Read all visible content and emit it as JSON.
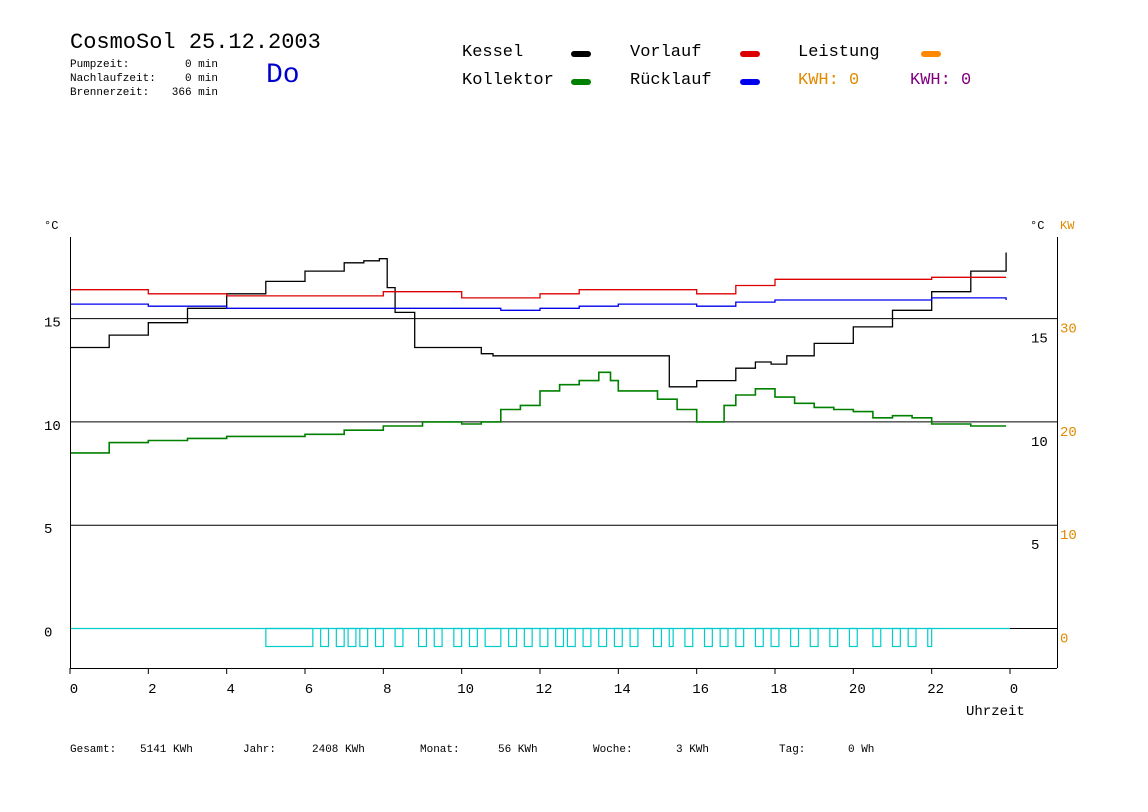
{
  "header": {
    "title": "CosmoSol 25.12.2003",
    "day": "Do",
    "stats": [
      {
        "label": "Pumpzeit:",
        "value": "0 min"
      },
      {
        "label": "Nachlaufzeit:",
        "value": "0 min"
      },
      {
        "label": "Brennerzeit:",
        "value": "366 min"
      }
    ]
  },
  "legend": {
    "kessel": {
      "label": "Kessel",
      "color": "#000000"
    },
    "vorlauf": {
      "label": "Vorlauf",
      "color": "#dd0000"
    },
    "leistung": {
      "label": "Leistung",
      "color": "#ff8800"
    },
    "kollektor": {
      "label": "Kollektor",
      "color": "#008000"
    },
    "ruecklauf": {
      "label": "Rücklauf",
      "color": "#0000ee"
    },
    "kwh1": {
      "label": "KWH: 0",
      "color": "#e08a00"
    },
    "kwh2": {
      "label": "KWH: 0",
      "color": "#800080"
    }
  },
  "chart_data": {
    "type": "line",
    "xlabel": "Uhrzeit",
    "xlim": [
      0,
      24
    ],
    "x_ticks": [
      "0",
      "2",
      "4",
      "6",
      "8",
      "10",
      "12",
      "14",
      "16",
      "18",
      "20",
      "22",
      "0"
    ],
    "ylim": [
      -3,
      19
    ],
    "left_axis": {
      "unit": "°C",
      "ticks": [
        "15",
        "10",
        "5",
        "0"
      ]
    },
    "right_axis": {
      "unit": "°C",
      "ticks": [
        "15",
        "10",
        "5"
      ]
    },
    "right_axis2": {
      "unit": "KW",
      "color": "#e08a00",
      "ticks": [
        "30",
        "20",
        "10",
        "0"
      ]
    },
    "grid": "horizontal lines at 0, 5, 10, 15",
    "series": [
      {
        "name": "Kessel",
        "color": "#000000",
        "x": [
          0,
          1,
          2,
          3,
          4,
          5,
          6,
          7,
          7.5,
          7.9,
          8.1,
          8.3,
          8.8,
          10.2,
          10.5,
          10.8,
          12,
          14,
          15.1,
          15.3,
          16,
          17,
          17.5,
          17.9,
          18.3,
          19,
          20,
          21,
          22,
          23,
          23.9
        ],
        "y": [
          13.6,
          14.2,
          14.8,
          15.5,
          16.2,
          16.8,
          17.3,
          17.7,
          17.8,
          17.9,
          16.5,
          15.3,
          13.6,
          13.6,
          13.3,
          13.2,
          13.2,
          13.2,
          13.2,
          11.7,
          12.0,
          12.6,
          12.9,
          12.8,
          13.2,
          13.8,
          14.6,
          15.4,
          16.3,
          17.3,
          18.2
        ]
      },
      {
        "name": "Vorlauf",
        "color": "#dd0000",
        "x": [
          0,
          2,
          4,
          6,
          8,
          9,
          10,
          11,
          12,
          13,
          14,
          15,
          16,
          17,
          18,
          19,
          20,
          21,
          22,
          23,
          23.9
        ],
        "y": [
          16.4,
          16.2,
          16.1,
          16.1,
          16.3,
          16.3,
          16.0,
          16.0,
          16.2,
          16.4,
          16.4,
          16.4,
          16.2,
          16.6,
          16.9,
          16.9,
          16.9,
          16.9,
          17.0,
          17.0,
          17.0
        ]
      },
      {
        "name": "Rücklauf",
        "color": "#0000ee",
        "x": [
          0,
          2,
          4,
          6,
          8,
          10,
          11,
          12,
          13,
          14,
          15,
          16,
          17,
          18,
          19,
          20,
          21,
          22,
          23,
          23.9
        ],
        "y": [
          15.7,
          15.6,
          15.5,
          15.5,
          15.5,
          15.5,
          15.4,
          15.5,
          15.6,
          15.7,
          15.7,
          15.6,
          15.8,
          15.9,
          15.9,
          15.9,
          15.9,
          16.0,
          16.0,
          15.9
        ]
      },
      {
        "name": "Kollektor",
        "color": "#008000",
        "x": [
          0,
          1,
          2,
          3,
          4,
          5,
          6,
          7,
          8,
          9,
          10,
          10.5,
          11,
          11.5,
          12,
          12.5,
          13,
          13.5,
          13.8,
          14,
          14.5,
          15,
          15.5,
          16,
          16.3,
          16.7,
          17,
          17.5,
          18,
          18.5,
          19,
          19.5,
          20,
          20.5,
          21,
          21.5,
          22,
          22.5,
          23,
          23.9
        ],
        "y": [
          8.5,
          9.0,
          9.1,
          9.2,
          9.3,
          9.3,
          9.4,
          9.6,
          9.8,
          10.0,
          9.9,
          10.0,
          10.6,
          10.8,
          11.5,
          11.8,
          12.0,
          12.4,
          12.0,
          11.5,
          11.5,
          11.1,
          10.6,
          10.0,
          10.0,
          10.8,
          11.3,
          11.6,
          11.2,
          10.9,
          10.7,
          10.6,
          10.5,
          10.2,
          10.3,
          10.2,
          9.9,
          9.9,
          9.8,
          9.8
        ]
      }
    ]
  },
  "footer": [
    {
      "label": "Gesamt:",
      "value": "5141 KWh"
    },
    {
      "label": "Jahr:",
      "value": "2408 KWh"
    },
    {
      "label": "Monat:",
      "value": "56 KWh"
    },
    {
      "label": "Woche:",
      "value": "3 KWh"
    },
    {
      "label": "Tag:",
      "value": "0 Wh"
    }
  ]
}
